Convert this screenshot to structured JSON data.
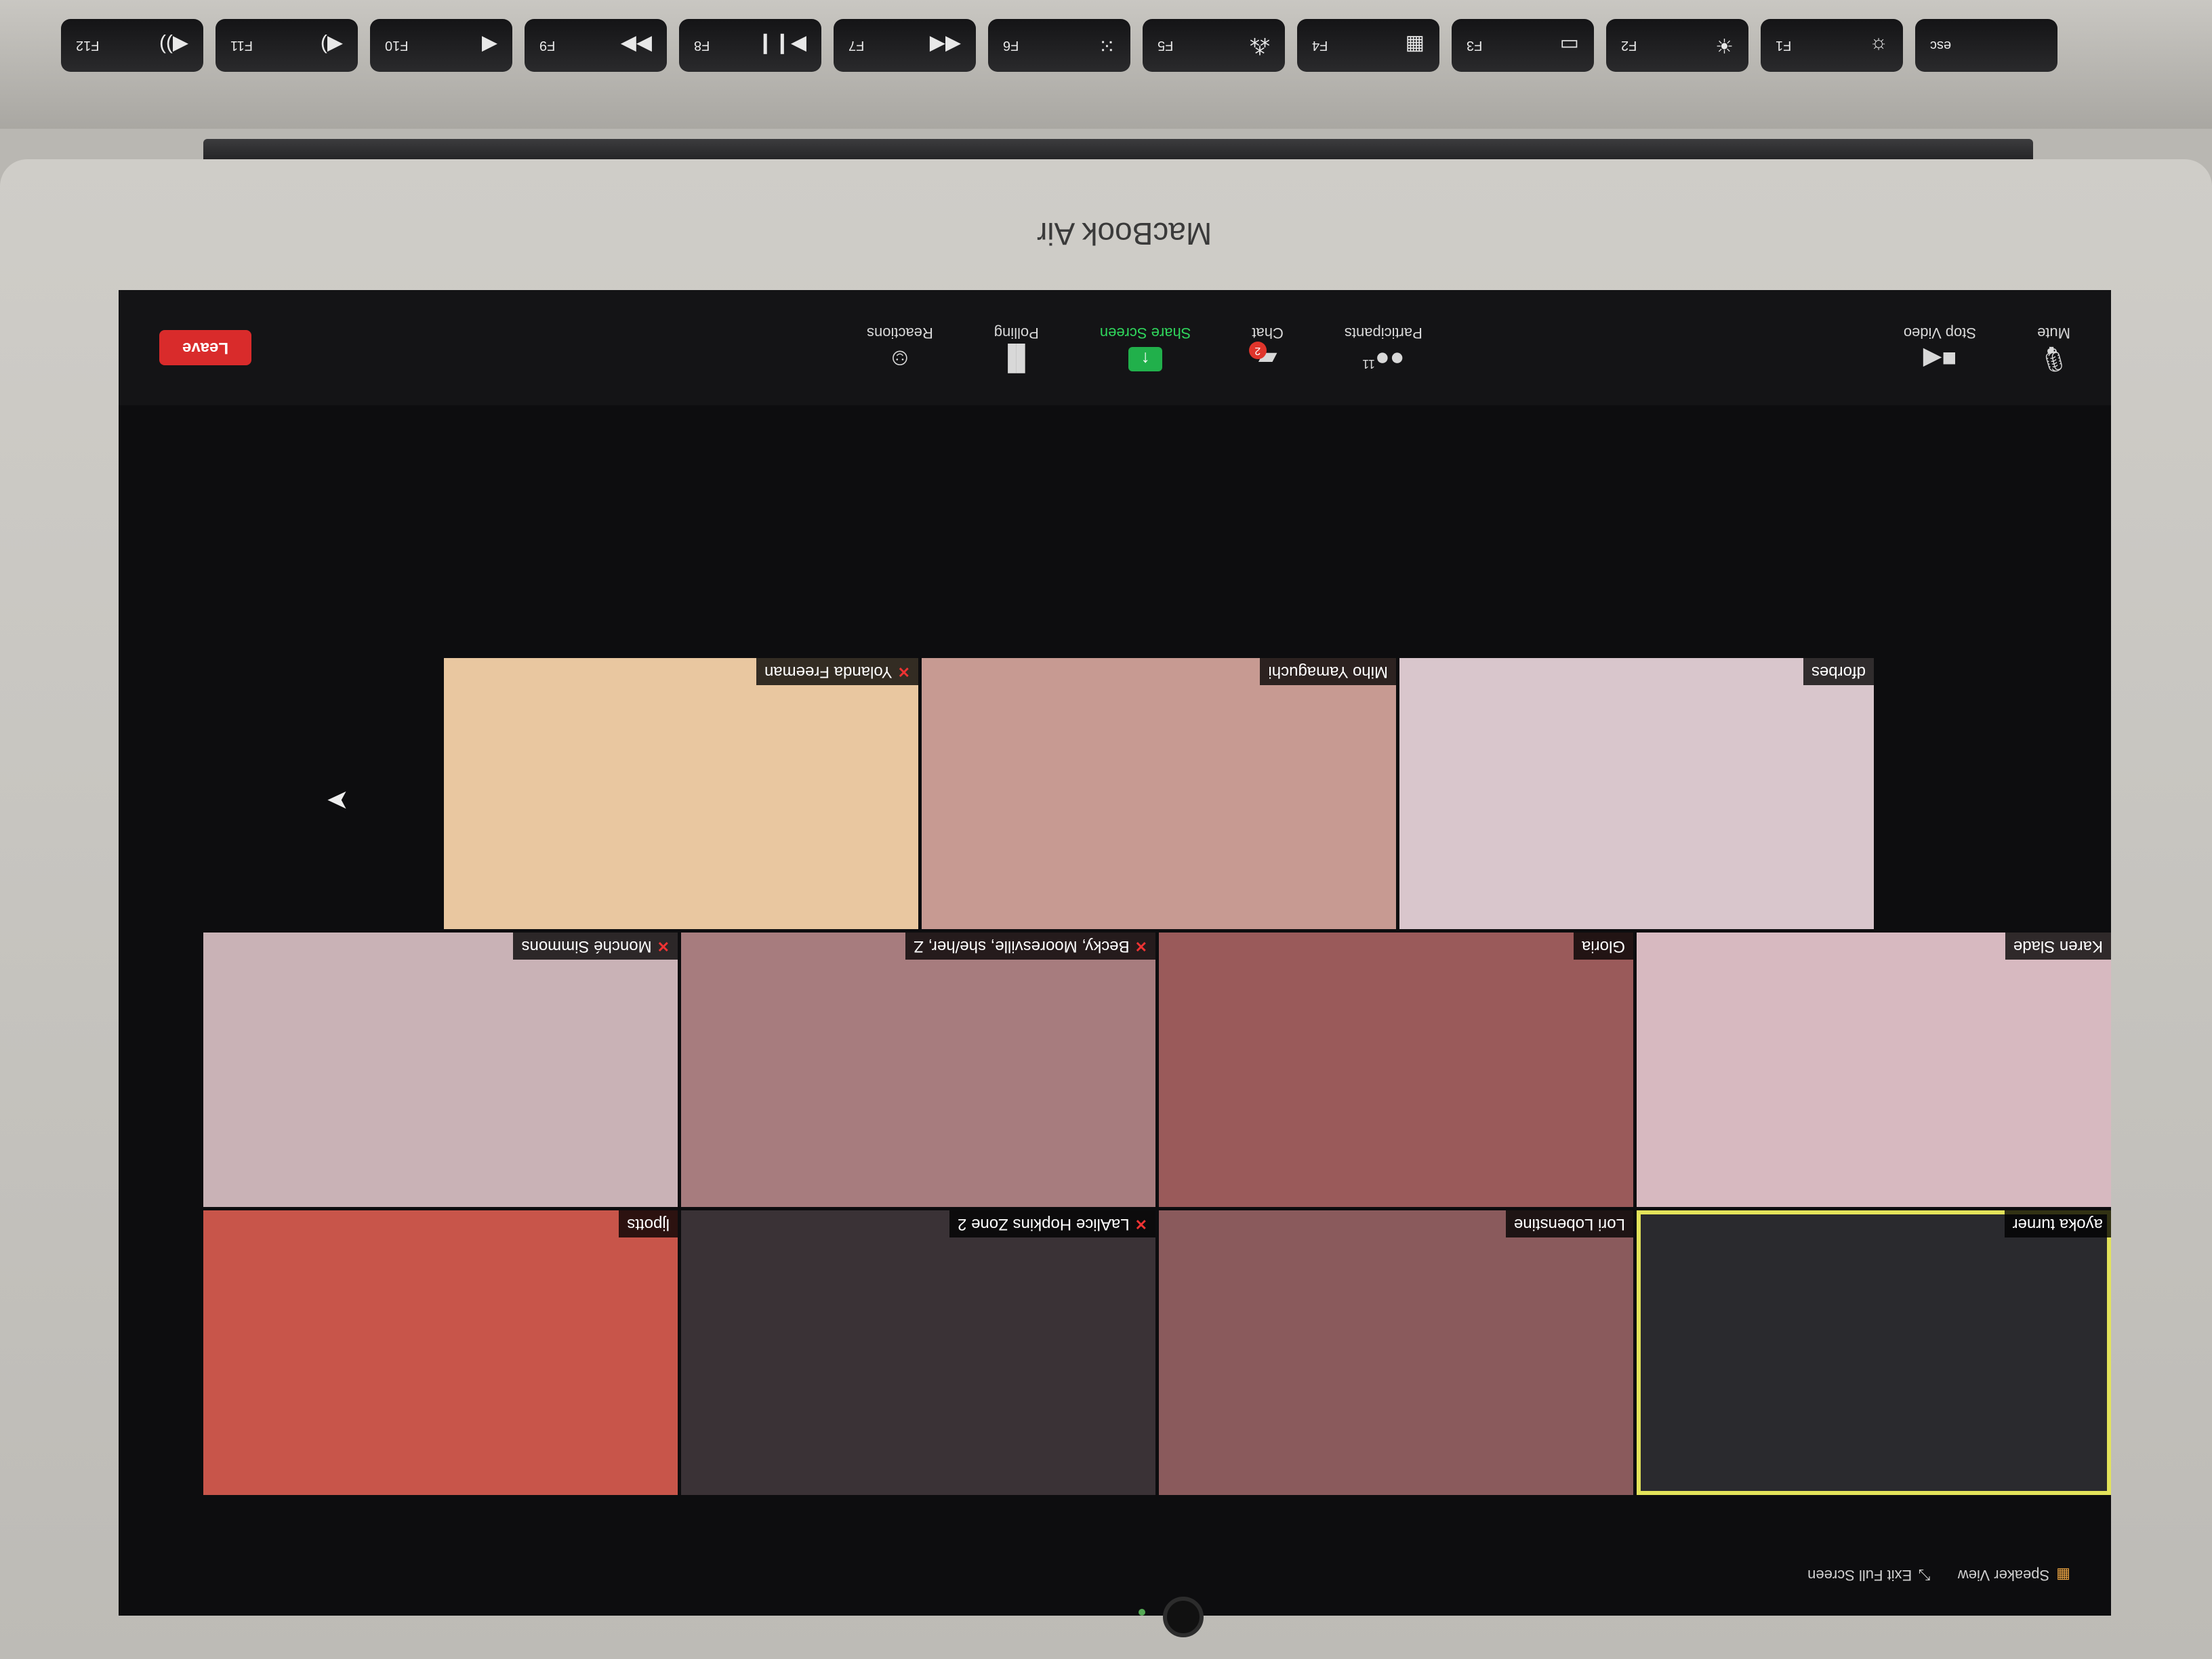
{
  "keyboard": {
    "keys": [
      {
        "label": "esc",
        "glyph": ""
      },
      {
        "label": "F1",
        "glyph": "☼"
      },
      {
        "label": "F2",
        "glyph": "☀"
      },
      {
        "label": "F3",
        "glyph": "▭"
      },
      {
        "label": "F4",
        "glyph": "▦"
      },
      {
        "label": "F5",
        "glyph": "⁂"
      },
      {
        "label": "F6",
        "glyph": "⁙"
      },
      {
        "label": "F7",
        "glyph": "◀◀"
      },
      {
        "label": "F8",
        "glyph": "▶❙❙"
      },
      {
        "label": "F9",
        "glyph": "▶▶"
      },
      {
        "label": "F10",
        "glyph": "◀"
      },
      {
        "label": "F11",
        "glyph": "◀)"
      },
      {
        "label": "F12",
        "glyph": "◀))"
      }
    ]
  },
  "laptop": {
    "brand": "MacBook Air"
  },
  "toolbar": {
    "mute_label": "Mute",
    "stop_video_label": "Stop Video",
    "participants_label": "Participants",
    "participants_count": "11",
    "chat_label": "Chat",
    "chat_badge": "2",
    "share_label": "Share Screen",
    "polling_label": "Polling",
    "reactions_label": "Reactions",
    "leave_label": "Leave",
    "icons": {
      "mute": "microphone-icon",
      "video": "video-camera-icon",
      "participants": "participants-icon",
      "chat": "chat-bubble-icon",
      "share": "share-arrow-icon",
      "polling": "bar-chart-icon",
      "reactions": "smiley-plus-icon"
    },
    "share_color": "#21b04b",
    "leave_color": "#d92b2b"
  },
  "topbar": {
    "speaker_view_label": "Speaker View",
    "exit_full_screen_label": "Exit Full Screen"
  },
  "participants": [
    {
      "name": "ayoka turner",
      "muted": false,
      "active": true,
      "color": "#2a2a2e"
    },
    {
      "name": "Lori Lobenstine",
      "muted": false,
      "active": false,
      "color": "#8a5a5c"
    },
    {
      "name": "LaAlice Hopkins Zone 2",
      "muted": true,
      "active": false,
      "color": "#3a3236"
    },
    {
      "name": "ljpotts",
      "muted": false,
      "active": false,
      "color": "#c8554a"
    },
    {
      "name": "Karen Slade",
      "muted": false,
      "active": false,
      "color": "#d7b9c0"
    },
    {
      "name": "Gloria",
      "muted": false,
      "active": false,
      "color": "#9a5a5a"
    },
    {
      "name": "Becky, Mooresville, she/her, Z",
      "muted": true,
      "active": false,
      "color": "#a77c7e"
    },
    {
      "name": "Monché Simmons",
      "muted": true,
      "active": false,
      "color": "#c9b2b6"
    },
    {
      "name": "dforbes",
      "muted": false,
      "active": false,
      "color": "#d9c6cc"
    },
    {
      "name": "Miho Yamaguchi",
      "muted": false,
      "active": false,
      "color": "#c79a92"
    },
    {
      "name": "Yolanda Freeman",
      "muted": true,
      "active": false,
      "color": "#e9c7a0"
    }
  ]
}
